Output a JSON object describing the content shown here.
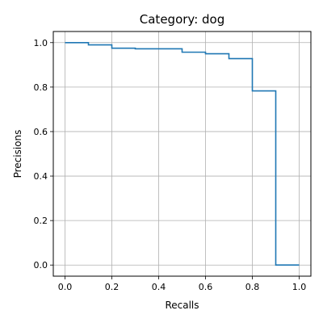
{
  "chart_data": {
    "type": "line",
    "step": "post",
    "title": "Category: dog",
    "xlabel": "Recalls",
    "ylabel": "Precisions",
    "xlim": [
      -0.05,
      1.05
    ],
    "ylim": [
      -0.05,
      1.05
    ],
    "xticks": [
      0.0,
      0.2,
      0.4,
      0.6,
      0.8,
      1.0
    ],
    "xtick_labels": [
      "0.0",
      "0.2",
      "0.4",
      "0.6",
      "0.8",
      "1.0"
    ],
    "yticks": [
      0.0,
      0.2,
      0.4,
      0.6,
      0.8,
      1.0
    ],
    "ytick_labels": [
      "0.0",
      "0.2",
      "0.4",
      "0.6",
      "0.8",
      "1.0"
    ],
    "grid": true,
    "line_color": "#1f77b4",
    "grid_color": "#b0b0b0",
    "series": [
      {
        "x": [
          0.0,
          0.1,
          0.2,
          0.3,
          0.4,
          0.5,
          0.6,
          0.7,
          0.8,
          0.9,
          1.0
        ],
        "y": [
          1.0,
          0.99,
          0.975,
          0.972,
          0.972,
          0.957,
          0.95,
          0.928,
          0.783,
          0.0,
          0.0
        ]
      }
    ]
  }
}
